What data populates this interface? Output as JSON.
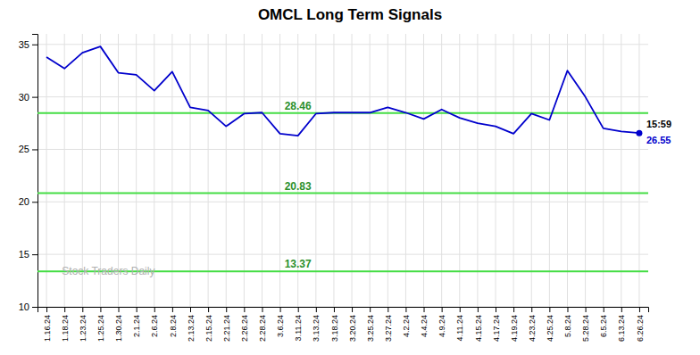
{
  "chart_data": {
    "type": "line",
    "title": "OMCL Long Term Signals",
    "categories": [
      "1.16.24",
      "1.18.24",
      "1.23.24",
      "1.25.24",
      "1.30.24",
      "2.1.24",
      "2.6.24",
      "2.8.24",
      "2.13.24",
      "2.15.24",
      "2.21.24",
      "2.26.24",
      "2.28.24",
      "3.6.24",
      "3.11.24",
      "3.13.24",
      "3.18.24",
      "3.20.24",
      "3.25.24",
      "3.27.24",
      "4.2.24",
      "4.4.24",
      "4.9.24",
      "4.11.24",
      "4.15.24",
      "4.17.24",
      "4.19.24",
      "4.23.24",
      "4.25.24",
      "5.8.24",
      "5.28.24",
      "6.5.24",
      "6.13.24",
      "6.26.24"
    ],
    "values": [
      33.8,
      32.7,
      34.2,
      34.8,
      32.3,
      32.1,
      30.6,
      32.4,
      29.0,
      28.7,
      27.2,
      28.4,
      28.5,
      26.5,
      26.3,
      28.4,
      28.5,
      28.5,
      28.5,
      29.0,
      28.5,
      27.9,
      28.8,
      28.0,
      27.5,
      27.2,
      26.5,
      28.4,
      27.8,
      32.5,
      30.0,
      27.0,
      26.7,
      26.55
    ],
    "color": "#0000cc",
    "ylim": [
      10,
      36
    ],
    "yticks": [
      10,
      15,
      20,
      25,
      30,
      35
    ],
    "grid": true,
    "reference_lines": [
      {
        "value": 28.46,
        "color": "#44dd44"
      },
      {
        "value": 20.83,
        "color": "#44dd44"
      },
      {
        "value": 13.37,
        "color": "#44dd44"
      }
    ],
    "last_point": {
      "label": "15:59",
      "value": 26.55
    },
    "watermark": "Stock Traders Daily"
  }
}
